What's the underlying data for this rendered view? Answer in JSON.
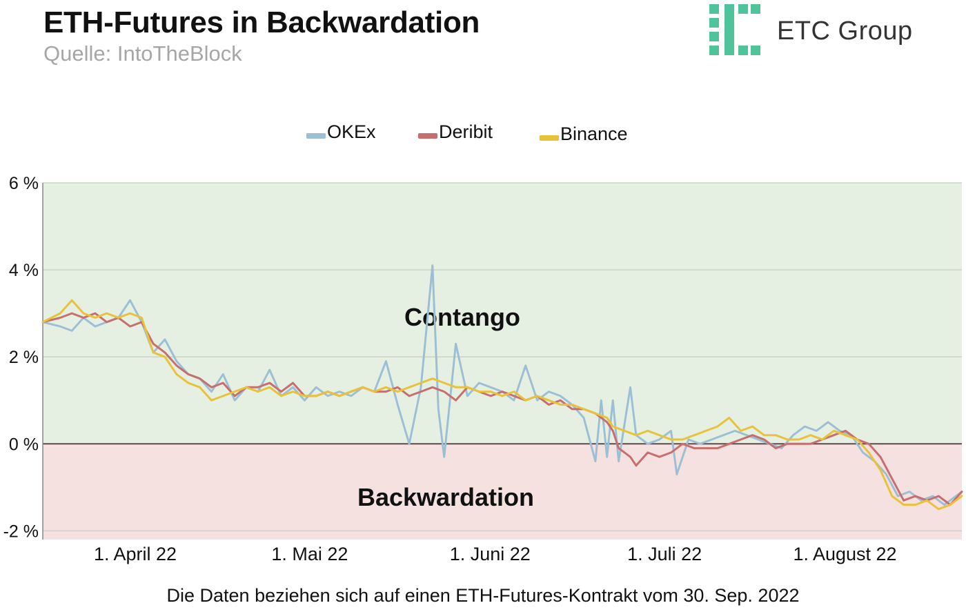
{
  "header": {
    "title": "ETH-Futures in Backwardation",
    "subtitle": "Quelle: IntoTheBlock"
  },
  "logo": {
    "text": "ETC Group",
    "color": "#4fc39a"
  },
  "footnote": "Die Daten beziehen sich auf einen ETH-Futures-Kontrakt vom 30. Sep. 2022",
  "chart_data": {
    "type": "line",
    "title": "ETH-Futures in Backwardation",
    "xlabel": "",
    "ylabel": "",
    "ylim": [
      -2.2,
      6.0
    ],
    "xlim": [
      "2022-03-25",
      "2022-08-30"
    ],
    "grid": true,
    "legend": "top-center",
    "y_ticks": [
      {
        "value": 6,
        "label": "6 %"
      },
      {
        "value": 4,
        "label": "4 %"
      },
      {
        "value": 2,
        "label": "2 %"
      },
      {
        "value": 0,
        "label": "0 %"
      },
      {
        "value": -2,
        "label": "-2 %"
      }
    ],
    "x_ticks": [
      {
        "date": "2022-04-01",
        "label": "1. April 22"
      },
      {
        "date": "2022-05-01",
        "label": "1. Mai 22"
      },
      {
        "date": "2022-06-01",
        "label": "1. Juni 22"
      },
      {
        "date": "2022-07-01",
        "label": "1. Juli 22"
      },
      {
        "date": "2022-08-01",
        "label": "1. August 22"
      }
    ],
    "regions": [
      {
        "label": "Contango",
        "from": 0,
        "to": 6.0,
        "color": "#e6f0e2"
      },
      {
        "label": "Backwardation",
        "from": -2.2,
        "to": 0,
        "color": "#f6e1e1"
      }
    ],
    "series": [
      {
        "name": "OKEx",
        "color": "#9dbfd6",
        "points": [
          [
            "2022-03-25",
            2.8
          ],
          [
            "2022-03-28",
            2.7
          ],
          [
            "2022-03-30",
            2.6
          ],
          [
            "2022-04-01",
            2.9
          ],
          [
            "2022-04-03",
            2.7
          ],
          [
            "2022-04-05",
            2.8
          ],
          [
            "2022-04-07",
            2.9
          ],
          [
            "2022-04-09",
            3.3
          ],
          [
            "2022-04-11",
            2.8
          ],
          [
            "2022-04-13",
            2.1
          ],
          [
            "2022-04-15",
            2.4
          ],
          [
            "2022-04-17",
            1.9
          ],
          [
            "2022-04-19",
            1.6
          ],
          [
            "2022-04-21",
            1.5
          ],
          [
            "2022-04-23",
            1.2
          ],
          [
            "2022-04-25",
            1.6
          ],
          [
            "2022-04-27",
            1.0
          ],
          [
            "2022-04-29",
            1.3
          ],
          [
            "2022-05-01",
            1.2
          ],
          [
            "2022-05-03",
            1.7
          ],
          [
            "2022-05-05",
            1.1
          ],
          [
            "2022-05-07",
            1.3
          ],
          [
            "2022-05-09",
            1.0
          ],
          [
            "2022-05-11",
            1.3
          ],
          [
            "2022-05-13",
            1.1
          ],
          [
            "2022-05-15",
            1.2
          ],
          [
            "2022-05-17",
            1.1
          ],
          [
            "2022-05-19",
            1.3
          ],
          [
            "2022-05-21",
            1.2
          ],
          [
            "2022-05-23",
            1.9
          ],
          [
            "2022-05-25",
            0.9
          ],
          [
            "2022-05-27",
            0.0
          ],
          [
            "2022-05-29",
            1.3
          ],
          [
            "2022-05-31",
            4.1
          ],
          [
            "2022-06-01",
            0.8
          ],
          [
            "2022-06-02",
            -0.3
          ],
          [
            "2022-06-04",
            2.3
          ],
          [
            "2022-06-06",
            1.1
          ],
          [
            "2022-06-08",
            1.4
          ],
          [
            "2022-06-10",
            1.3
          ],
          [
            "2022-06-12",
            1.2
          ],
          [
            "2022-06-14",
            1.0
          ],
          [
            "2022-06-16",
            1.8
          ],
          [
            "2022-06-18",
            1.0
          ],
          [
            "2022-06-20",
            1.2
          ],
          [
            "2022-06-22",
            1.1
          ],
          [
            "2022-06-24",
            0.9
          ],
          [
            "2022-06-26",
            0.6
          ],
          [
            "2022-06-28",
            -0.4
          ],
          [
            "2022-06-29",
            1.0
          ],
          [
            "2022-06-30",
            -0.3
          ],
          [
            "2022-07-01",
            1.0
          ],
          [
            "2022-07-02",
            -0.4
          ],
          [
            "2022-07-04",
            1.3
          ],
          [
            "2022-07-05",
            0.2
          ],
          [
            "2022-07-07",
            0.0
          ],
          [
            "2022-07-09",
            0.1
          ],
          [
            "2022-07-11",
            0.3
          ],
          [
            "2022-07-12",
            -0.7
          ],
          [
            "2022-07-14",
            0.1
          ],
          [
            "2022-07-16",
            0.0
          ],
          [
            "2022-07-18",
            0.1
          ],
          [
            "2022-07-20",
            0.2
          ],
          [
            "2022-07-22",
            0.3
          ],
          [
            "2022-07-24",
            0.2
          ],
          [
            "2022-07-26",
            0.1
          ],
          [
            "2022-07-28",
            0.0
          ],
          [
            "2022-07-30",
            -0.1
          ],
          [
            "2022-08-01",
            0.2
          ],
          [
            "2022-08-03",
            0.4
          ],
          [
            "2022-08-05",
            0.3
          ],
          [
            "2022-08-07",
            0.5
          ],
          [
            "2022-08-09",
            0.3
          ],
          [
            "2022-08-11",
            0.2
          ],
          [
            "2022-08-13",
            -0.2
          ],
          [
            "2022-08-15",
            -0.4
          ],
          [
            "2022-08-17",
            -0.7
          ],
          [
            "2022-08-19",
            -1.2
          ],
          [
            "2022-08-21",
            -1.1
          ],
          [
            "2022-08-23",
            -1.3
          ],
          [
            "2022-08-25",
            -1.2
          ],
          [
            "2022-08-27",
            -1.4
          ],
          [
            "2022-08-30",
            -1.1
          ]
        ]
      },
      {
        "name": "Deribit",
        "color": "#c76e6e",
        "points": [
          [
            "2022-03-25",
            2.8
          ],
          [
            "2022-03-28",
            2.9
          ],
          [
            "2022-03-30",
            3.0
          ],
          [
            "2022-04-01",
            2.9
          ],
          [
            "2022-04-03",
            3.0
          ],
          [
            "2022-04-05",
            2.8
          ],
          [
            "2022-04-07",
            2.9
          ],
          [
            "2022-04-09",
            2.7
          ],
          [
            "2022-04-11",
            2.8
          ],
          [
            "2022-04-13",
            2.3
          ],
          [
            "2022-04-15",
            2.1
          ],
          [
            "2022-04-17",
            1.8
          ],
          [
            "2022-04-19",
            1.6
          ],
          [
            "2022-04-21",
            1.5
          ],
          [
            "2022-04-23",
            1.3
          ],
          [
            "2022-04-25",
            1.4
          ],
          [
            "2022-04-27",
            1.1
          ],
          [
            "2022-04-29",
            1.3
          ],
          [
            "2022-05-01",
            1.3
          ],
          [
            "2022-05-03",
            1.4
          ],
          [
            "2022-05-05",
            1.2
          ],
          [
            "2022-05-07",
            1.4
          ],
          [
            "2022-05-09",
            1.1
          ],
          [
            "2022-05-11",
            1.1
          ],
          [
            "2022-05-13",
            1.2
          ],
          [
            "2022-05-15",
            1.1
          ],
          [
            "2022-05-17",
            1.2
          ],
          [
            "2022-05-19",
            1.3
          ],
          [
            "2022-05-21",
            1.2
          ],
          [
            "2022-05-23",
            1.2
          ],
          [
            "2022-05-25",
            1.3
          ],
          [
            "2022-05-27",
            1.1
          ],
          [
            "2022-05-29",
            1.2
          ],
          [
            "2022-05-31",
            1.3
          ],
          [
            "2022-06-02",
            1.2
          ],
          [
            "2022-06-04",
            1.0
          ],
          [
            "2022-06-06",
            1.3
          ],
          [
            "2022-06-08",
            1.2
          ],
          [
            "2022-06-10",
            1.1
          ],
          [
            "2022-06-12",
            1.2
          ],
          [
            "2022-06-14",
            1.1
          ],
          [
            "2022-06-16",
            1.0
          ],
          [
            "2022-06-18",
            1.1
          ],
          [
            "2022-06-20",
            0.9
          ],
          [
            "2022-06-22",
            1.0
          ],
          [
            "2022-06-24",
            0.8
          ],
          [
            "2022-06-26",
            0.8
          ],
          [
            "2022-06-28",
            0.7
          ],
          [
            "2022-06-30",
            0.5
          ],
          [
            "2022-07-01",
            0.3
          ],
          [
            "2022-07-02",
            -0.1
          ],
          [
            "2022-07-04",
            -0.3
          ],
          [
            "2022-07-05",
            -0.5
          ],
          [
            "2022-07-07",
            -0.2
          ],
          [
            "2022-07-09",
            -0.3
          ],
          [
            "2022-07-11",
            -0.2
          ],
          [
            "2022-07-13",
            0.0
          ],
          [
            "2022-07-15",
            -0.1
          ],
          [
            "2022-07-17",
            -0.1
          ],
          [
            "2022-07-19",
            -0.1
          ],
          [
            "2022-07-21",
            0.0
          ],
          [
            "2022-07-23",
            0.1
          ],
          [
            "2022-07-25",
            0.2
          ],
          [
            "2022-07-27",
            0.1
          ],
          [
            "2022-07-29",
            -0.1
          ],
          [
            "2022-07-31",
            0.0
          ],
          [
            "2022-08-02",
            0.0
          ],
          [
            "2022-08-04",
            0.0
          ],
          [
            "2022-08-06",
            0.1
          ],
          [
            "2022-08-08",
            0.2
          ],
          [
            "2022-08-10",
            0.3
          ],
          [
            "2022-08-12",
            0.1
          ],
          [
            "2022-08-14",
            0.0
          ],
          [
            "2022-08-16",
            -0.3
          ],
          [
            "2022-08-18",
            -0.8
          ],
          [
            "2022-08-20",
            -1.3
          ],
          [
            "2022-08-22",
            -1.2
          ],
          [
            "2022-08-24",
            -1.3
          ],
          [
            "2022-08-26",
            -1.2
          ],
          [
            "2022-08-28",
            -1.4
          ],
          [
            "2022-08-30",
            -1.1
          ]
        ]
      },
      {
        "name": "Binance",
        "color": "#e8c23a",
        "points": [
          [
            "2022-03-25",
            2.8
          ],
          [
            "2022-03-28",
            3.0
          ],
          [
            "2022-03-30",
            3.3
          ],
          [
            "2022-04-01",
            3.0
          ],
          [
            "2022-04-03",
            2.9
          ],
          [
            "2022-04-05",
            3.0
          ],
          [
            "2022-04-07",
            2.9
          ],
          [
            "2022-04-09",
            3.0
          ],
          [
            "2022-04-11",
            2.9
          ],
          [
            "2022-04-13",
            2.1
          ],
          [
            "2022-04-15",
            2.0
          ],
          [
            "2022-04-17",
            1.6
          ],
          [
            "2022-04-19",
            1.4
          ],
          [
            "2022-04-21",
            1.3
          ],
          [
            "2022-04-23",
            1.0
          ],
          [
            "2022-04-25",
            1.1
          ],
          [
            "2022-04-27",
            1.2
          ],
          [
            "2022-04-29",
            1.3
          ],
          [
            "2022-05-01",
            1.2
          ],
          [
            "2022-05-03",
            1.3
          ],
          [
            "2022-05-05",
            1.1
          ],
          [
            "2022-05-07",
            1.2
          ],
          [
            "2022-05-09",
            1.1
          ],
          [
            "2022-05-11",
            1.1
          ],
          [
            "2022-05-13",
            1.2
          ],
          [
            "2022-05-15",
            1.1
          ],
          [
            "2022-05-17",
            1.2
          ],
          [
            "2022-05-19",
            1.3
          ],
          [
            "2022-05-21",
            1.2
          ],
          [
            "2022-05-23",
            1.3
          ],
          [
            "2022-05-25",
            1.2
          ],
          [
            "2022-05-27",
            1.3
          ],
          [
            "2022-05-29",
            1.4
          ],
          [
            "2022-05-31",
            1.5
          ],
          [
            "2022-06-02",
            1.4
          ],
          [
            "2022-06-04",
            1.3
          ],
          [
            "2022-06-06",
            1.3
          ],
          [
            "2022-06-08",
            1.2
          ],
          [
            "2022-06-10",
            1.2
          ],
          [
            "2022-06-12",
            1.1
          ],
          [
            "2022-06-14",
            1.2
          ],
          [
            "2022-06-16",
            1.0
          ],
          [
            "2022-06-18",
            1.1
          ],
          [
            "2022-06-20",
            1.0
          ],
          [
            "2022-06-22",
            0.9
          ],
          [
            "2022-06-24",
            0.9
          ],
          [
            "2022-06-26",
            0.8
          ],
          [
            "2022-06-28",
            0.7
          ],
          [
            "2022-06-30",
            0.6
          ],
          [
            "2022-07-01",
            0.4
          ],
          [
            "2022-07-03",
            0.3
          ],
          [
            "2022-07-05",
            0.2
          ],
          [
            "2022-07-07",
            0.3
          ],
          [
            "2022-07-09",
            0.2
          ],
          [
            "2022-07-11",
            0.1
          ],
          [
            "2022-07-13",
            0.1
          ],
          [
            "2022-07-15",
            0.2
          ],
          [
            "2022-07-17",
            0.3
          ],
          [
            "2022-07-19",
            0.4
          ],
          [
            "2022-07-21",
            0.6
          ],
          [
            "2022-07-23",
            0.3
          ],
          [
            "2022-07-25",
            0.4
          ],
          [
            "2022-07-27",
            0.2
          ],
          [
            "2022-07-29",
            0.2
          ],
          [
            "2022-07-31",
            0.1
          ],
          [
            "2022-08-02",
            0.1
          ],
          [
            "2022-08-04",
            0.2
          ],
          [
            "2022-08-06",
            0.1
          ],
          [
            "2022-08-08",
            0.3
          ],
          [
            "2022-08-10",
            0.2
          ],
          [
            "2022-08-12",
            0.1
          ],
          [
            "2022-08-14",
            -0.2
          ],
          [
            "2022-08-16",
            -0.6
          ],
          [
            "2022-08-18",
            -1.2
          ],
          [
            "2022-08-20",
            -1.4
          ],
          [
            "2022-08-22",
            -1.4
          ],
          [
            "2022-08-24",
            -1.3
          ],
          [
            "2022-08-26",
            -1.5
          ],
          [
            "2022-08-28",
            -1.4
          ],
          [
            "2022-08-30",
            -1.2
          ]
        ]
      }
    ]
  }
}
